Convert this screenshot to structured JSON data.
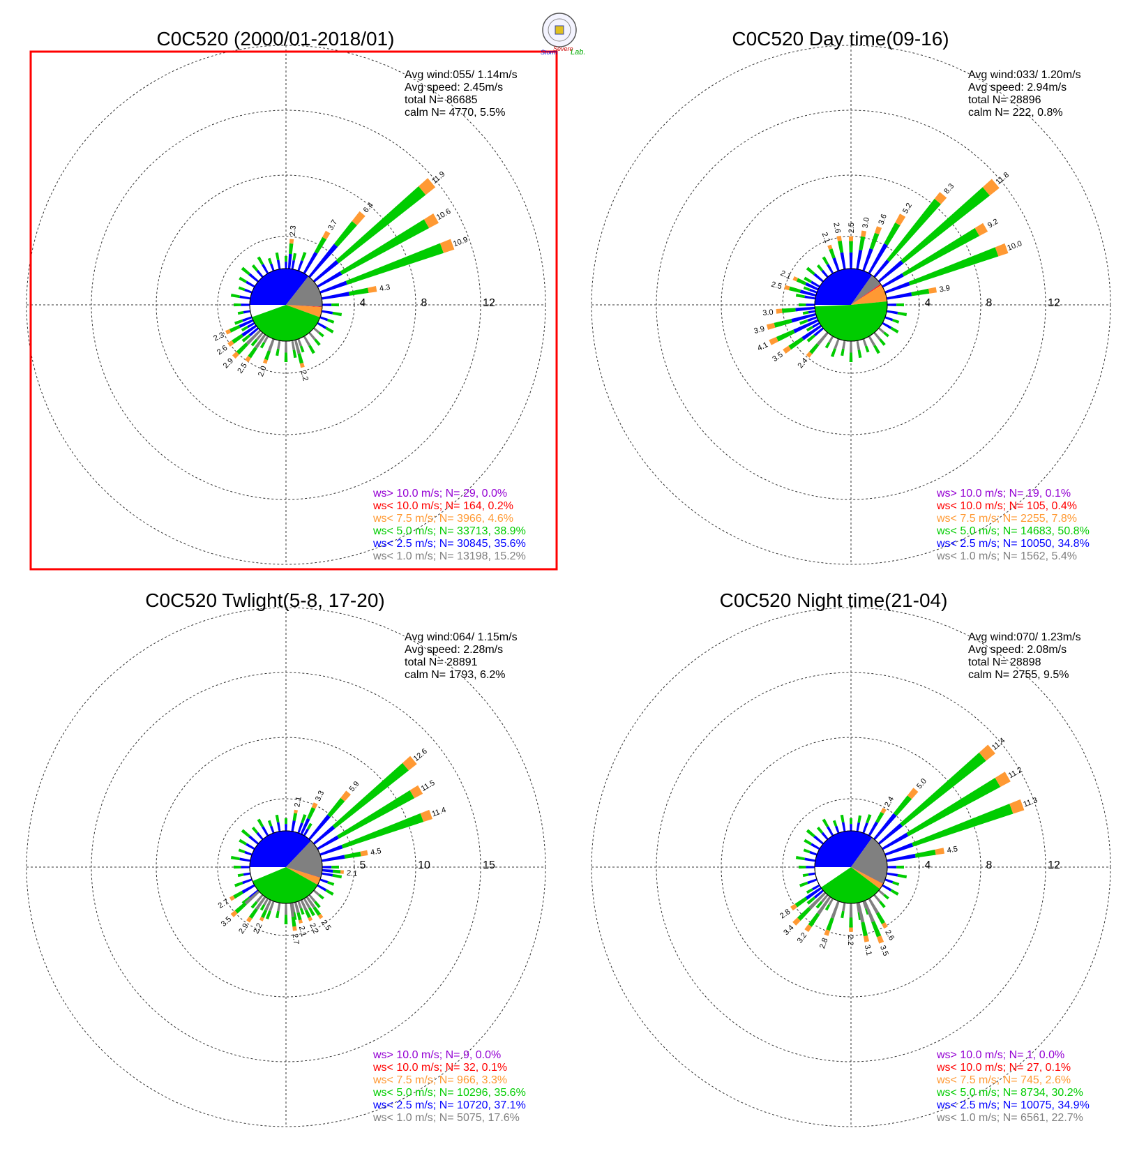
{
  "logo": {
    "line1": "Severe",
    "line2": "Storm",
    "line3": "Lab."
  },
  "colors": {
    "gt10": "#9400d3",
    "lt10": "#ff0000",
    "lt75": "#ff9933",
    "lt5": "#00cc00",
    "lt25": "#0000ff",
    "lt1": "#808080",
    "frame": "#ff0000"
  },
  "chart_data": [
    {
      "type": "windrose",
      "title": "C0C520 (2000/01-2018/01)",
      "avg_wind": "Avg wind:055/ 1.14m/s",
      "avg_speed": "Avg speed: 2.45m/s",
      "total": "total N=      86685",
      "calm": "calm N=   4770,   5.5%",
      "rings": [
        4,
        8,
        12
      ],
      "ring_labels": [
        "4",
        "8",
        "12"
      ],
      "highlighted": true,
      "pie": {
        "gt10": 0.0,
        "lt10": 0.2,
        "lt75": 4.6,
        "lt5": 38.9,
        "lt25": 35.6,
        "lt1": 15.2
      },
      "legend": [
        "ws> 10.0 m/s; N=    29,   0.0%",
        "ws< 10.0 m/s; N=   164,   0.2%",
        "ws<  7.5 m/s; N=  3966,   4.6%",
        "ws<  5.0 m/s; N= 33713, 38.9%",
        "ws<  2.5 m/s; N= 30845, 35.6%",
        "ws<  1.0 m/s; N= 13198, 15.2%"
      ],
      "bars": [
        {
          "dir": 5,
          "value": 2.3,
          "label": "2.3"
        },
        {
          "dir": 30,
          "value": 3.7,
          "label": "3.7"
        },
        {
          "dir": 40,
          "value": 6.4,
          "label": "6.4"
        },
        {
          "dir": 50,
          "value": 11.9,
          "label": "11.9"
        },
        {
          "dir": 60,
          "value": 10.6,
          "label": "10.6"
        },
        {
          "dir": 70,
          "value": 10.9,
          "label": "10.9"
        },
        {
          "dir": 80,
          "value": 4.3,
          "label": "4.3"
        },
        {
          "dir": 165,
          "value": 2.2,
          "label": "2.2"
        },
        {
          "dir": 200,
          "value": 2.0,
          "label": "2.0"
        },
        {
          "dir": 215,
          "value": 2.5,
          "label": "2.5"
        },
        {
          "dir": 225,
          "value": 2.9,
          "label": "2.9"
        },
        {
          "dir": 235,
          "value": 2.6,
          "label": "2.6"
        },
        {
          "dir": 245,
          "value": 2.3,
          "label": "2.3"
        }
      ]
    },
    {
      "type": "windrose",
      "title": "C0C520 Day time(09-16)",
      "avg_wind": "Avg wind:033/ 1.20m/s",
      "avg_speed": "Avg speed: 2.94m/s",
      "total": "total N=      28896",
      "calm": "calm N=    222,   0.8%",
      "rings": [
        4,
        8,
        12
      ],
      "ring_labels": [
        "4",
        "8",
        "12"
      ],
      "highlighted": false,
      "pie": {
        "gt10": 0.1,
        "lt10": 0.4,
        "lt75": 7.8,
        "lt5": 50.8,
        "lt25": 34.8,
        "lt1": 5.4
      },
      "legend": [
        "ws> 10.0 m/s; N=    19,   0.1%",
        "ws< 10.0 m/s; N=   105,   0.4%",
        "ws<  7.5 m/s; N=  2255,   7.8%",
        "ws<  5.0 m/s; N= 14683, 50.8%",
        "ws<  2.5 m/s; N= 10050, 34.8%",
        "ws<  1.0 m/s; N=  1562,   5.4%"
      ],
      "bars": [
        {
          "dir": 340,
          "value": 2.1,
          "label": "2.1"
        },
        {
          "dir": 350,
          "value": 2.6,
          "label": "2.6"
        },
        {
          "dir": 0,
          "value": 2.5,
          "label": "2.5"
        },
        {
          "dir": 10,
          "value": 3.0,
          "label": "3.0"
        },
        {
          "dir": 20,
          "value": 3.6,
          "label": "3.6"
        },
        {
          "dir": 30,
          "value": 5.2,
          "label": "5.2"
        },
        {
          "dir": 40,
          "value": 8.3,
          "label": "8.3"
        },
        {
          "dir": 50,
          "value": 11.8,
          "label": "11.8"
        },
        {
          "dir": 60,
          "value": 9.2,
          "label": "9.2"
        },
        {
          "dir": 70,
          "value": 10.0,
          "label": "10.0"
        },
        {
          "dir": 80,
          "value": 3.9,
          "label": "3.9"
        },
        {
          "dir": 220,
          "value": 2.4,
          "label": "2.4"
        },
        {
          "dir": 235,
          "value": 3.5,
          "label": "3.5"
        },
        {
          "dir": 245,
          "value": 4.1,
          "label": "4.1"
        },
        {
          "dir": 255,
          "value": 3.9,
          "label": "3.9"
        },
        {
          "dir": 265,
          "value": 3.0,
          "label": "3.0"
        },
        {
          "dir": 285,
          "value": 2.5,
          "label": "2.5"
        },
        {
          "dir": 295,
          "value": 2.1,
          "label": "2.1"
        }
      ]
    },
    {
      "type": "windrose",
      "title": "C0C520 Twlight(5-8, 17-20)",
      "avg_wind": "Avg wind:064/ 1.15m/s",
      "avg_speed": "Avg speed: 2.28m/s",
      "total": "total N=      28891",
      "calm": "calm N=   1793,   6.2%",
      "rings": [
        5,
        10,
        15
      ],
      "ring_labels": [
        "5",
        "10",
        "15"
      ],
      "highlighted": false,
      "pie": {
        "gt10": 0.0,
        "lt10": 0.1,
        "lt75": 3.3,
        "lt5": 35.6,
        "lt25": 37.1,
        "lt1": 17.6
      },
      "legend": [
        "ws> 10.0 m/s; N=     9,   0.0%",
        "ws< 10.0 m/s; N=    32,   0.1%",
        "ws<  7.5 m/s; N=   966,   3.3%",
        "ws<  5.0 m/s; N= 10296, 35.6%",
        "ws<  2.5 m/s; N= 10720, 37.1%",
        "ws<  1.0 m/s; N=  5075, 17.6%"
      ],
      "bars": [
        {
          "dir": 10,
          "value": 2.1,
          "label": "2.1"
        },
        {
          "dir": 25,
          "value": 3.3,
          "label": "3.3"
        },
        {
          "dir": 40,
          "value": 5.9,
          "label": "5.9"
        },
        {
          "dir": 50,
          "value": 12.6,
          "label": "12.6"
        },
        {
          "dir": 60,
          "value": 11.5,
          "label": "11.5"
        },
        {
          "dir": 70,
          "value": 11.4,
          "label": "11.4"
        },
        {
          "dir": 80,
          "value": 4.5,
          "label": "4.5"
        },
        {
          "dir": 95,
          "value": 2.1,
          "label": "2.1"
        },
        {
          "dir": 145,
          "value": 2.5,
          "label": "2.5"
        },
        {
          "dir": 155,
          "value": 2.2,
          "label": "2.2"
        },
        {
          "dir": 165,
          "value": 2.1,
          "label": "2.1"
        },
        {
          "dir": 172,
          "value": 2.7,
          "label": "2.7"
        },
        {
          "dir": 205,
          "value": 2.2,
          "label": "2.2"
        },
        {
          "dir": 215,
          "value": 2.9,
          "label": "2.9"
        },
        {
          "dir": 228,
          "value": 3.5,
          "label": "3.5"
        },
        {
          "dir": 240,
          "value": 2.7,
          "label": "2.7"
        }
      ]
    },
    {
      "type": "windrose",
      "title": "C0C520 Night time(21-04)",
      "avg_wind": "Avg wind:070/ 1.23m/s",
      "avg_speed": "Avg speed: 2.08m/s",
      "total": "total N=      28898",
      "calm": "calm N=   2755,   9.5%",
      "rings": [
        4,
        8,
        12
      ],
      "ring_labels": [
        "4",
        "8",
        "12"
      ],
      "highlighted": false,
      "pie": {
        "gt10": 0.0,
        "lt10": 0.1,
        "lt75": 2.6,
        "lt5": 30.2,
        "lt25": 34.9,
        "lt1": 22.7
      },
      "legend": [
        "ws> 10.0 m/s; N=     1,   0.0%",
        "ws< 10.0 m/s; N=    27,   0.1%",
        "ws<  7.5 m/s; N=   745,   2.6%",
        "ws<  5.0 m/s; N=  8734, 30.2%",
        "ws<  2.5 m/s; N= 10075, 34.9%",
        "ws<  1.0 m/s; N=  6561, 22.7%"
      ],
      "bars": [
        {
          "dir": 30,
          "value": 2.4,
          "label": "2.4"
        },
        {
          "dir": 40,
          "value": 5.0,
          "label": "5.0"
        },
        {
          "dir": 50,
          "value": 11.4,
          "label": "11.4"
        },
        {
          "dir": 60,
          "value": 11.2,
          "label": "11.2"
        },
        {
          "dir": 70,
          "value": 11.3,
          "label": "11.3"
        },
        {
          "dir": 80,
          "value": 4.5,
          "label": "4.5"
        },
        {
          "dir": 150,
          "value": 2.6,
          "label": "2.6"
        },
        {
          "dir": 158,
          "value": 3.5,
          "label": "3.5"
        },
        {
          "dir": 168,
          "value": 3.1,
          "label": "3.1"
        },
        {
          "dir": 180,
          "value": 2.2,
          "label": "2.2"
        },
        {
          "dir": 200,
          "value": 2.8,
          "label": "2.8"
        },
        {
          "dir": 215,
          "value": 3.2,
          "label": "3.2"
        },
        {
          "dir": 225,
          "value": 3.4,
          "label": "3.4"
        },
        {
          "dir": 235,
          "value": 2.8,
          "label": "2.8"
        }
      ]
    }
  ]
}
